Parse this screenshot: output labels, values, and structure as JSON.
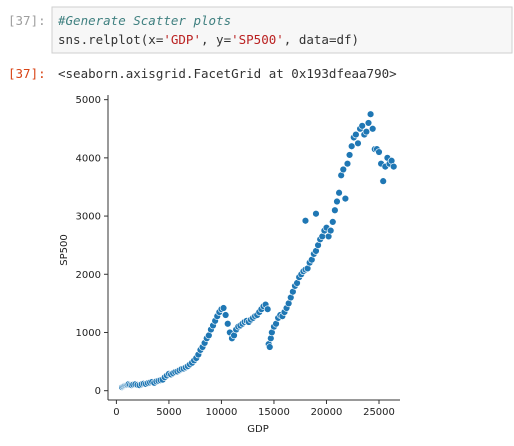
{
  "input_cell": {
    "prompt": "[37]:",
    "comment": "#Generate Scatter plots",
    "code": [
      "sns.relplot(x=",
      "'GDP'",
      ", y=",
      "'SP500'",
      ", data=df)"
    ]
  },
  "output_cell": {
    "prompt": "[37]:",
    "text": "<seaborn.axisgrid.FacetGrid at 0x193dfeaa790>"
  },
  "chart_data": {
    "type": "scatter",
    "color": "#1f77b4",
    "xlabel": "GDP",
    "ylabel": "SP500",
    "xlim": [
      -800,
      27000
    ],
    "ylim": [
      -160,
      5080
    ],
    "xticks": [
      0,
      5000,
      10000,
      15000,
      20000,
      25000
    ],
    "yticks": [
      0,
      1000,
      2000,
      3000,
      4000,
      5000
    ],
    "x": [
      540,
      650,
      750,
      850,
      950,
      1050,
      1150,
      1300,
      1450,
      1600,
      1800,
      2000,
      2200,
      2400,
      2600,
      2800,
      3000,
      3200,
      3400,
      3600,
      3800,
      4000,
      4200,
      4400,
      4600,
      4800,
      5000,
      5200,
      5400,
      5600,
      5800,
      6000,
      6200,
      6400,
      6600,
      6800,
      7000,
      7200,
      7400,
      7600,
      7800,
      8000,
      8200,
      8400,
      8600,
      8800,
      9000,
      9200,
      9400,
      9600,
      9800,
      10000,
      10200,
      10400,
      10600,
      10800,
      11000,
      11200,
      11400,
      11600,
      11800,
      12000,
      12200,
      12400,
      12600,
      12800,
      13000,
      13200,
      13400,
      13600,
      13800,
      14000,
      14200,
      14400,
      14500,
      14600,
      14700,
      14800,
      15000,
      15200,
      15400,
      15600,
      15800,
      16000,
      16200,
      16400,
      16600,
      16800,
      17000,
      17200,
      17400,
      17600,
      17800,
      18000,
      18200,
      18400,
      18600,
      18800,
      19000,
      19200,
      19400,
      19600,
      19800,
      20000,
      20200,
      20400,
      20600,
      20800,
      21000,
      21200,
      21400,
      21600,
      21800,
      22000,
      22200,
      22400,
      22600,
      22800,
      23000,
      23200,
      23400,
      23600,
      23800,
      24000,
      24200,
      24400,
      24600,
      24800,
      25000,
      25200,
      25400,
      25600,
      25800,
      26000,
      26200,
      26400,
      18000,
      19000
    ],
    "y": [
      60,
      70,
      80,
      90,
      95,
      100,
      110,
      100,
      95,
      105,
      110,
      100,
      95,
      110,
      120,
      115,
      130,
      140,
      150,
      135,
      160,
      170,
      180,
      190,
      230,
      260,
      290,
      280,
      300,
      320,
      330,
      350,
      370,
      380,
      400,
      420,
      450,
      480,
      520,
      560,
      620,
      700,
      750,
      820,
      900,
      950,
      1050,
      1120,
      1200,
      1280,
      1350,
      1400,
      1420,
      1300,
      1150,
      1000,
      900,
      950,
      1050,
      1100,
      1120,
      1150,
      1180,
      1200,
      1180,
      1220,
      1250,
      1280,
      1300,
      1350,
      1400,
      1450,
      1480,
      1400,
      800,
      750,
      900,
      1000,
      1100,
      1150,
      1250,
      1300,
      1280,
      1350,
      1420,
      1500,
      1600,
      1700,
      1800,
      1850,
      1950,
      2000,
      2050,
      2080,
      2100,
      2200,
      2250,
      2350,
      2400,
      2500,
      2600,
      2650,
      2750,
      2800,
      2650,
      2750,
      2900,
      3100,
      3250,
      3400,
      3700,
      3800,
      3300,
      3900,
      4050,
      4200,
      4350,
      4400,
      4250,
      4500,
      4550,
      4400,
      4450,
      4600,
      4750,
      4500,
      4150,
      4150,
      4100,
      3900,
      3600,
      3850,
      4000,
      3900,
      3950,
      3850,
      2920,
      3040
    ]
  }
}
